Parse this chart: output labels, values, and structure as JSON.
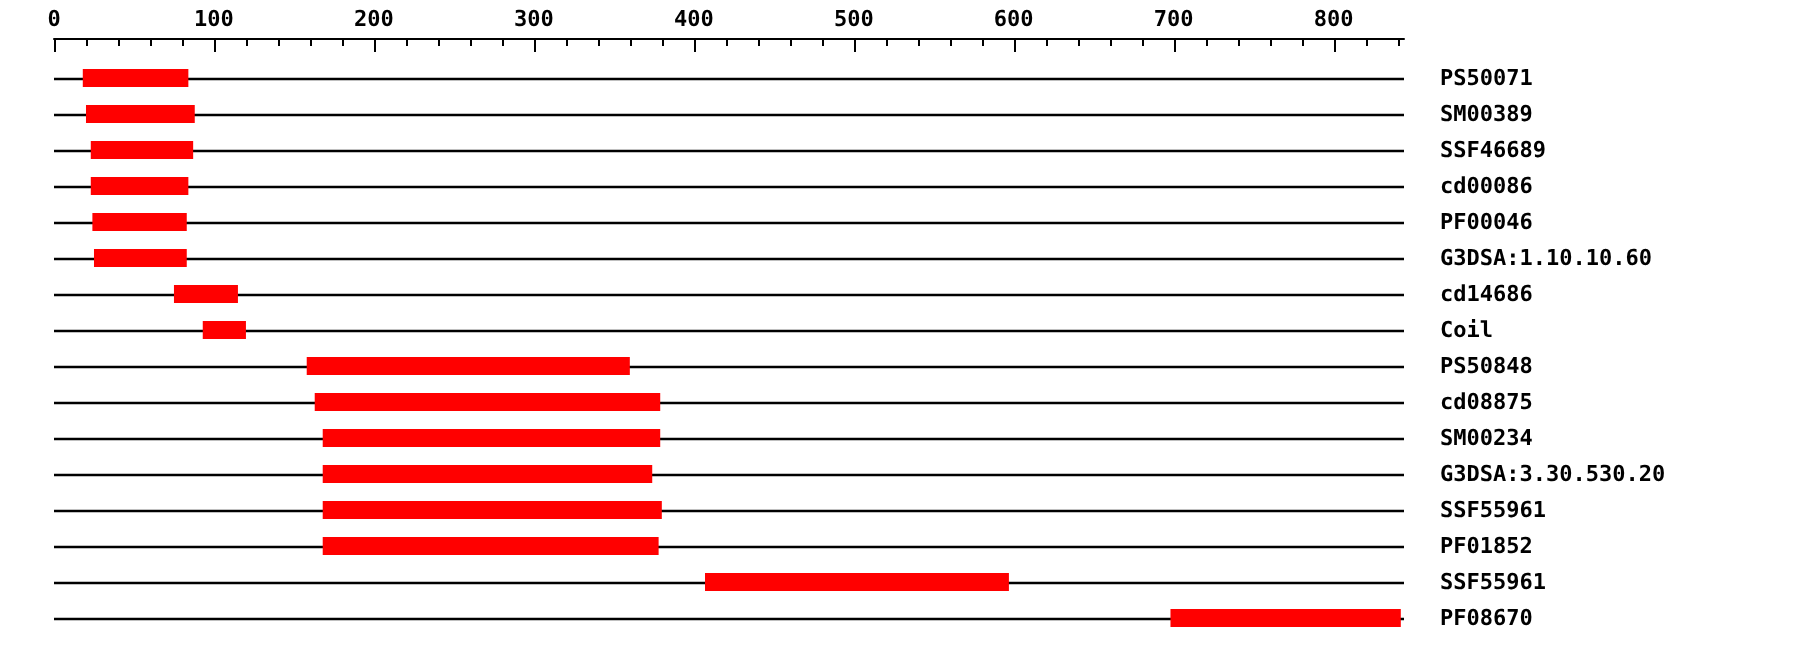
{
  "chart_data": {
    "type": "bar",
    "orientation": "horizontal",
    "categories": [
      "PS50071",
      "SM00389",
      "SSF46689",
      "cd00086",
      "PF00046",
      "G3DSA:1.10.10.60",
      "cd14686",
      "Coil",
      "PS50848",
      "cd08875",
      "SM00234",
      "G3DSA:3.30.530.20",
      "SSF55961",
      "PF01852",
      "SSF55961",
      "PF08670"
    ],
    "base": [
      18,
      20,
      23,
      23,
      24,
      25,
      75,
      93,
      158,
      163,
      168,
      168,
      168,
      168,
      407,
      698
    ],
    "values": [
      66,
      68,
      64,
      61,
      59,
      58,
      40,
      27,
      202,
      216,
      211,
      206,
      212,
      210,
      190,
      144
    ],
    "color": "#ff0000",
    "xlim": [
      0,
      844
    ],
    "xticks": [
      0,
      100,
      200,
      300,
      400,
      500,
      600,
      700,
      800
    ],
    "grid": "y"
  }
}
